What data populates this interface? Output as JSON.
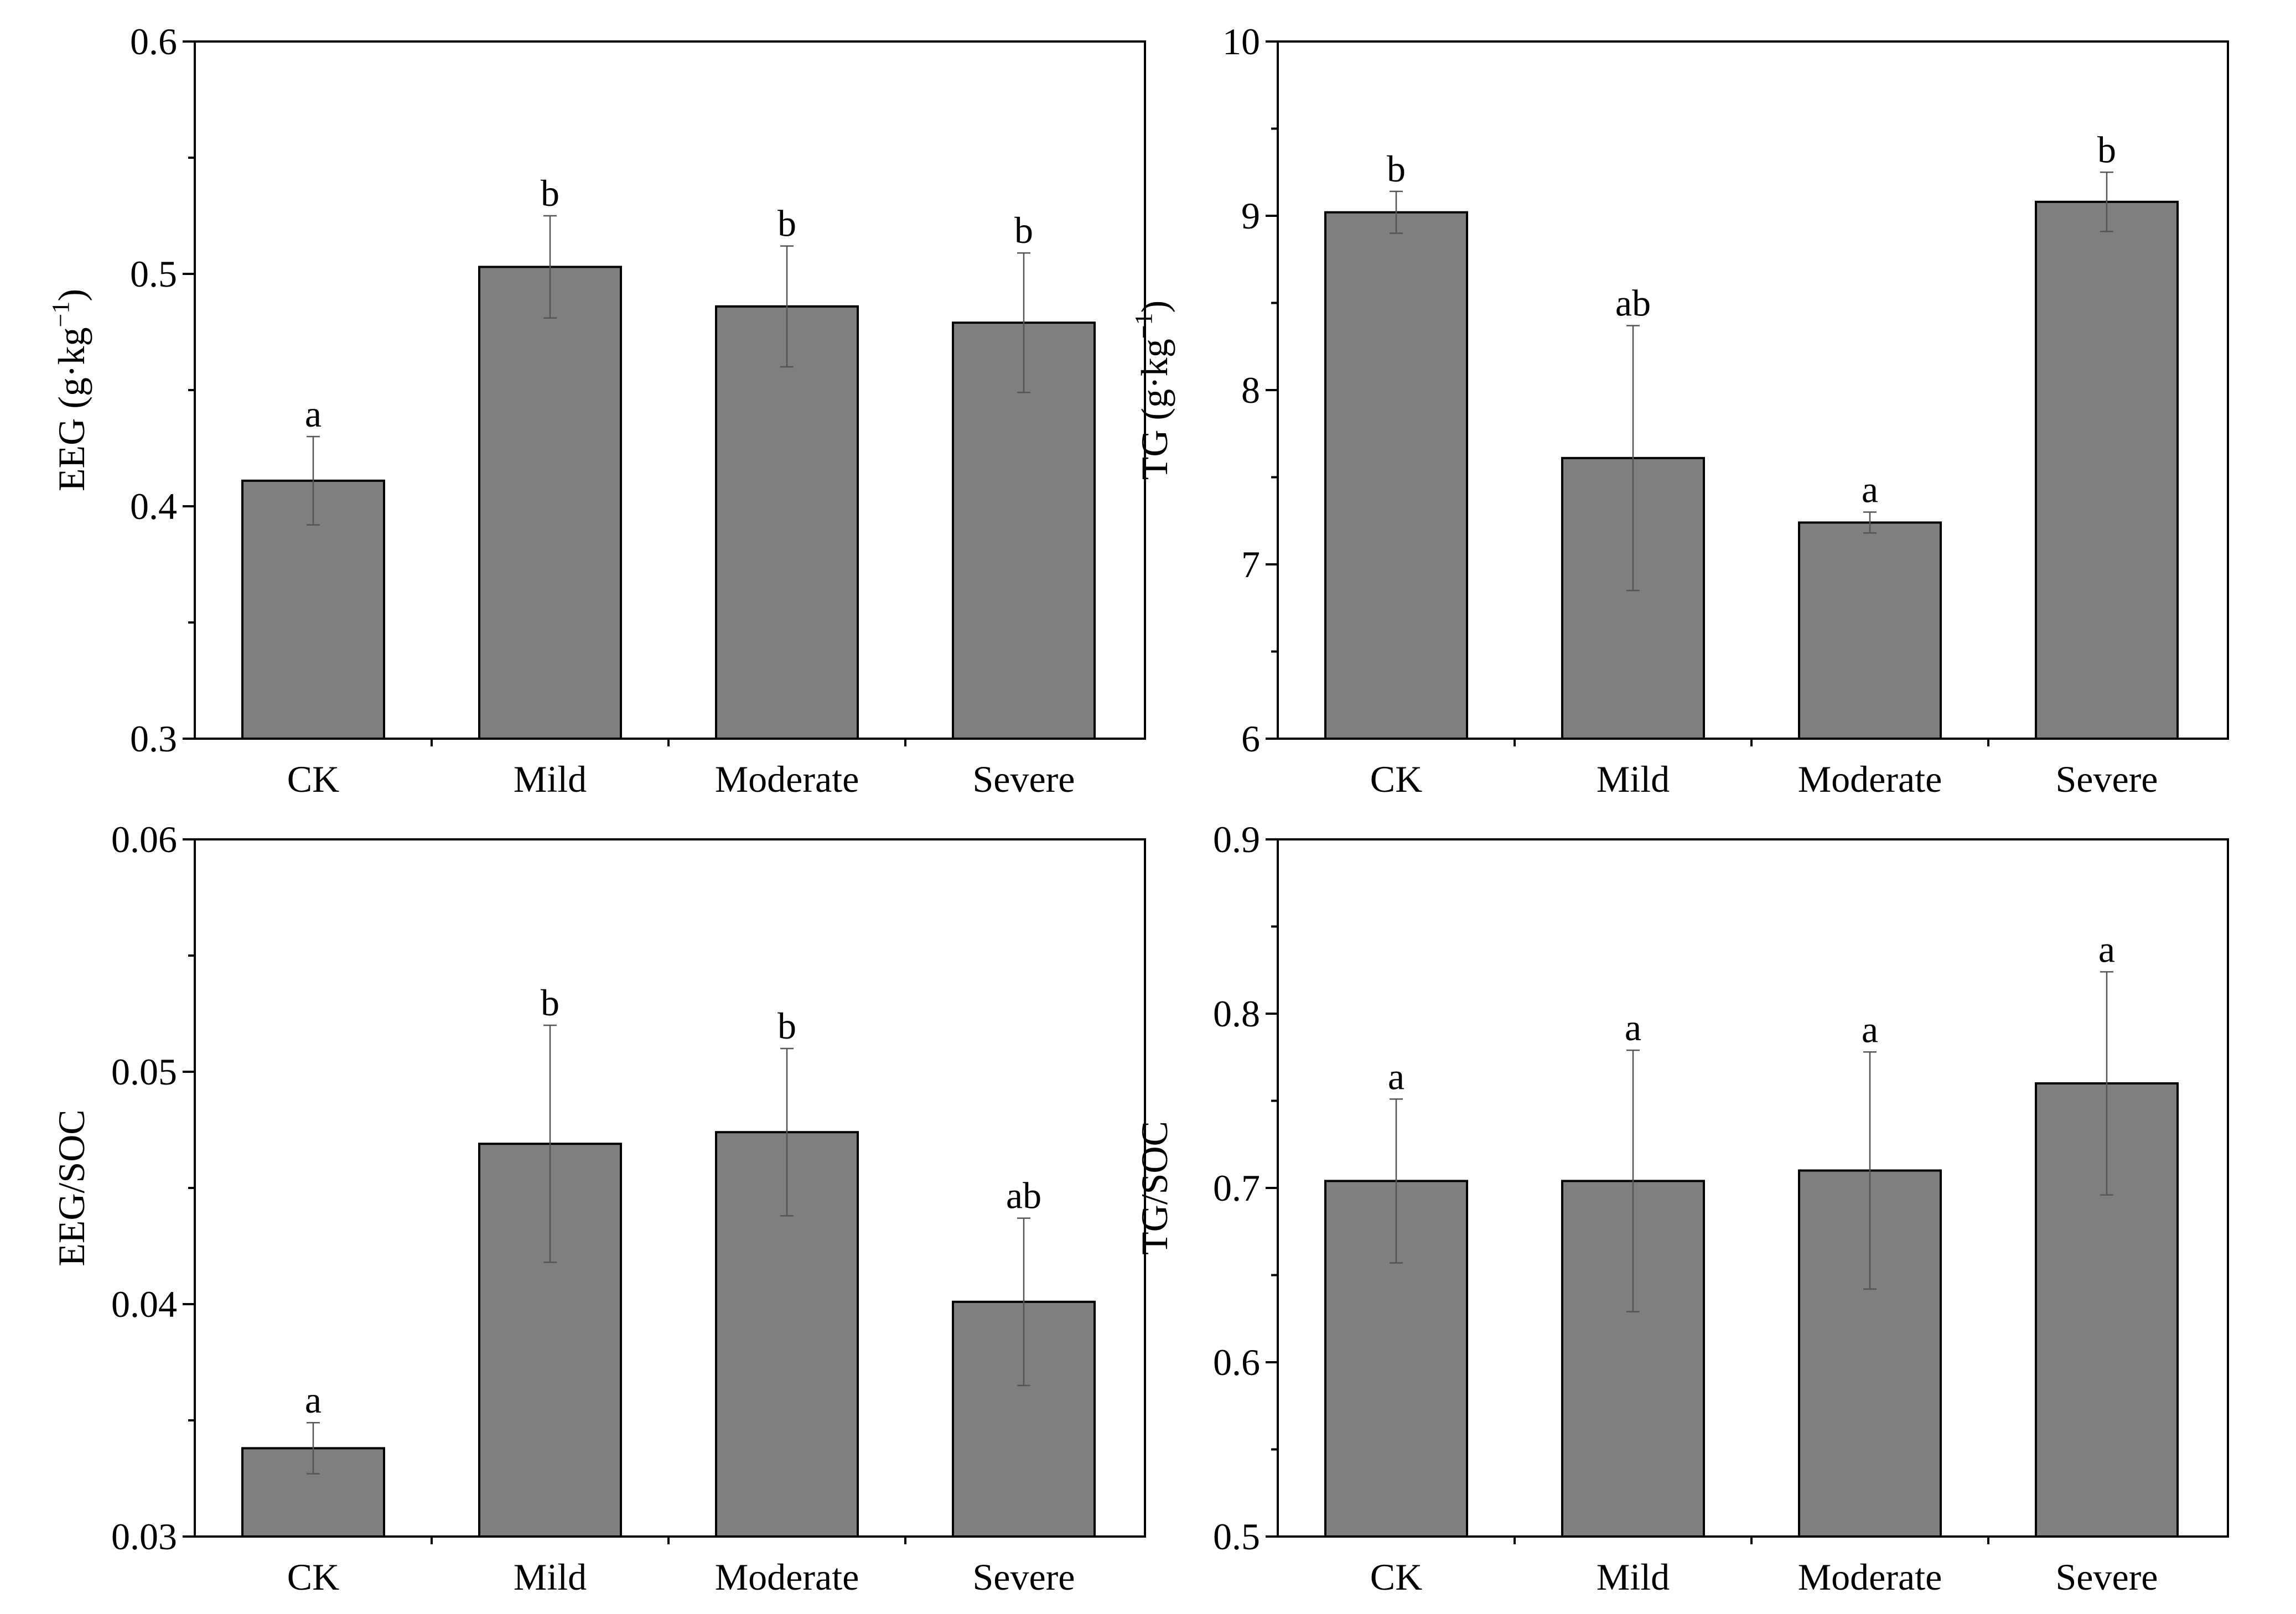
{
  "colors": {
    "bar_fill": "#7f7f7f",
    "bar_stroke": "#000000",
    "axis": "#000000",
    "error_bar": "#555555"
  },
  "chart_data": [
    {
      "id": "eeg",
      "type": "bar",
      "categories": [
        "CK",
        "Mild",
        "Moderate",
        "Severe"
      ],
      "values": [
        0.411,
        0.503,
        0.486,
        0.479
      ],
      "errors": [
        0.019,
        0.022,
        0.026,
        0.03
      ],
      "significance": [
        "a",
        "b",
        "b",
        "b"
      ],
      "ylabel_main": "EEG (g·kg",
      "ylabel_sup": "−1",
      "ylabel_close": ")",
      "ylim": [
        0.3,
        0.6
      ],
      "major_ticks": [
        0.3,
        0.4,
        0.5,
        0.6
      ],
      "tick_labels": [
        "0.3",
        "0.4",
        "0.5",
        "0.6"
      ],
      "minor_step": 0.05
    },
    {
      "id": "tg",
      "type": "bar",
      "categories": [
        "CK",
        "Mild",
        "Moderate",
        "Severe"
      ],
      "values": [
        9.02,
        7.61,
        7.24,
        9.08
      ],
      "errors": [
        0.12,
        0.76,
        0.06,
        0.17
      ],
      "significance": [
        "b",
        "ab",
        "a",
        "b"
      ],
      "ylabel_main": "TG (g·kg",
      "ylabel_sup": "−1",
      "ylabel_close": ")",
      "ylim": [
        6,
        10
      ],
      "major_ticks": [
        6,
        7,
        8,
        9,
        10
      ],
      "tick_labels": [
        "6",
        "7",
        "8",
        "9",
        "10"
      ],
      "minor_step": 0.5
    },
    {
      "id": "eeg-soc",
      "type": "bar",
      "categories": [
        "CK",
        "Mild",
        "Moderate",
        "Severe"
      ],
      "values": [
        0.0338,
        0.0469,
        0.0474,
        0.0401
      ],
      "errors": [
        0.0011,
        0.0051,
        0.0036,
        0.0036
      ],
      "significance": [
        "a",
        "b",
        "b",
        "ab"
      ],
      "ylabel_main": "EEG/SOC",
      "ylabel_sup": "",
      "ylabel_close": "",
      "ylim": [
        0.03,
        0.06
      ],
      "major_ticks": [
        0.03,
        0.04,
        0.05,
        0.06
      ],
      "tick_labels": [
        "0.03",
        "0.04",
        "0.05",
        "0.06"
      ],
      "minor_step": 0.005
    },
    {
      "id": "tg-soc",
      "type": "bar",
      "categories": [
        "CK",
        "Mild",
        "Moderate",
        "Severe"
      ],
      "values": [
        0.704,
        0.704,
        0.71,
        0.76
      ],
      "errors": [
        0.047,
        0.075,
        0.068,
        0.064
      ],
      "significance": [
        "a",
        "a",
        "a",
        "a"
      ],
      "ylabel_main": "TG/SOC",
      "ylabel_sup": "",
      "ylabel_close": "",
      "ylim": [
        0.5,
        0.9
      ],
      "major_ticks": [
        0.5,
        0.6,
        0.7,
        0.8,
        0.9
      ],
      "tick_labels": [
        "0.5",
        "0.6",
        "0.7",
        "0.8",
        "0.9"
      ],
      "minor_step": 0.05
    }
  ]
}
